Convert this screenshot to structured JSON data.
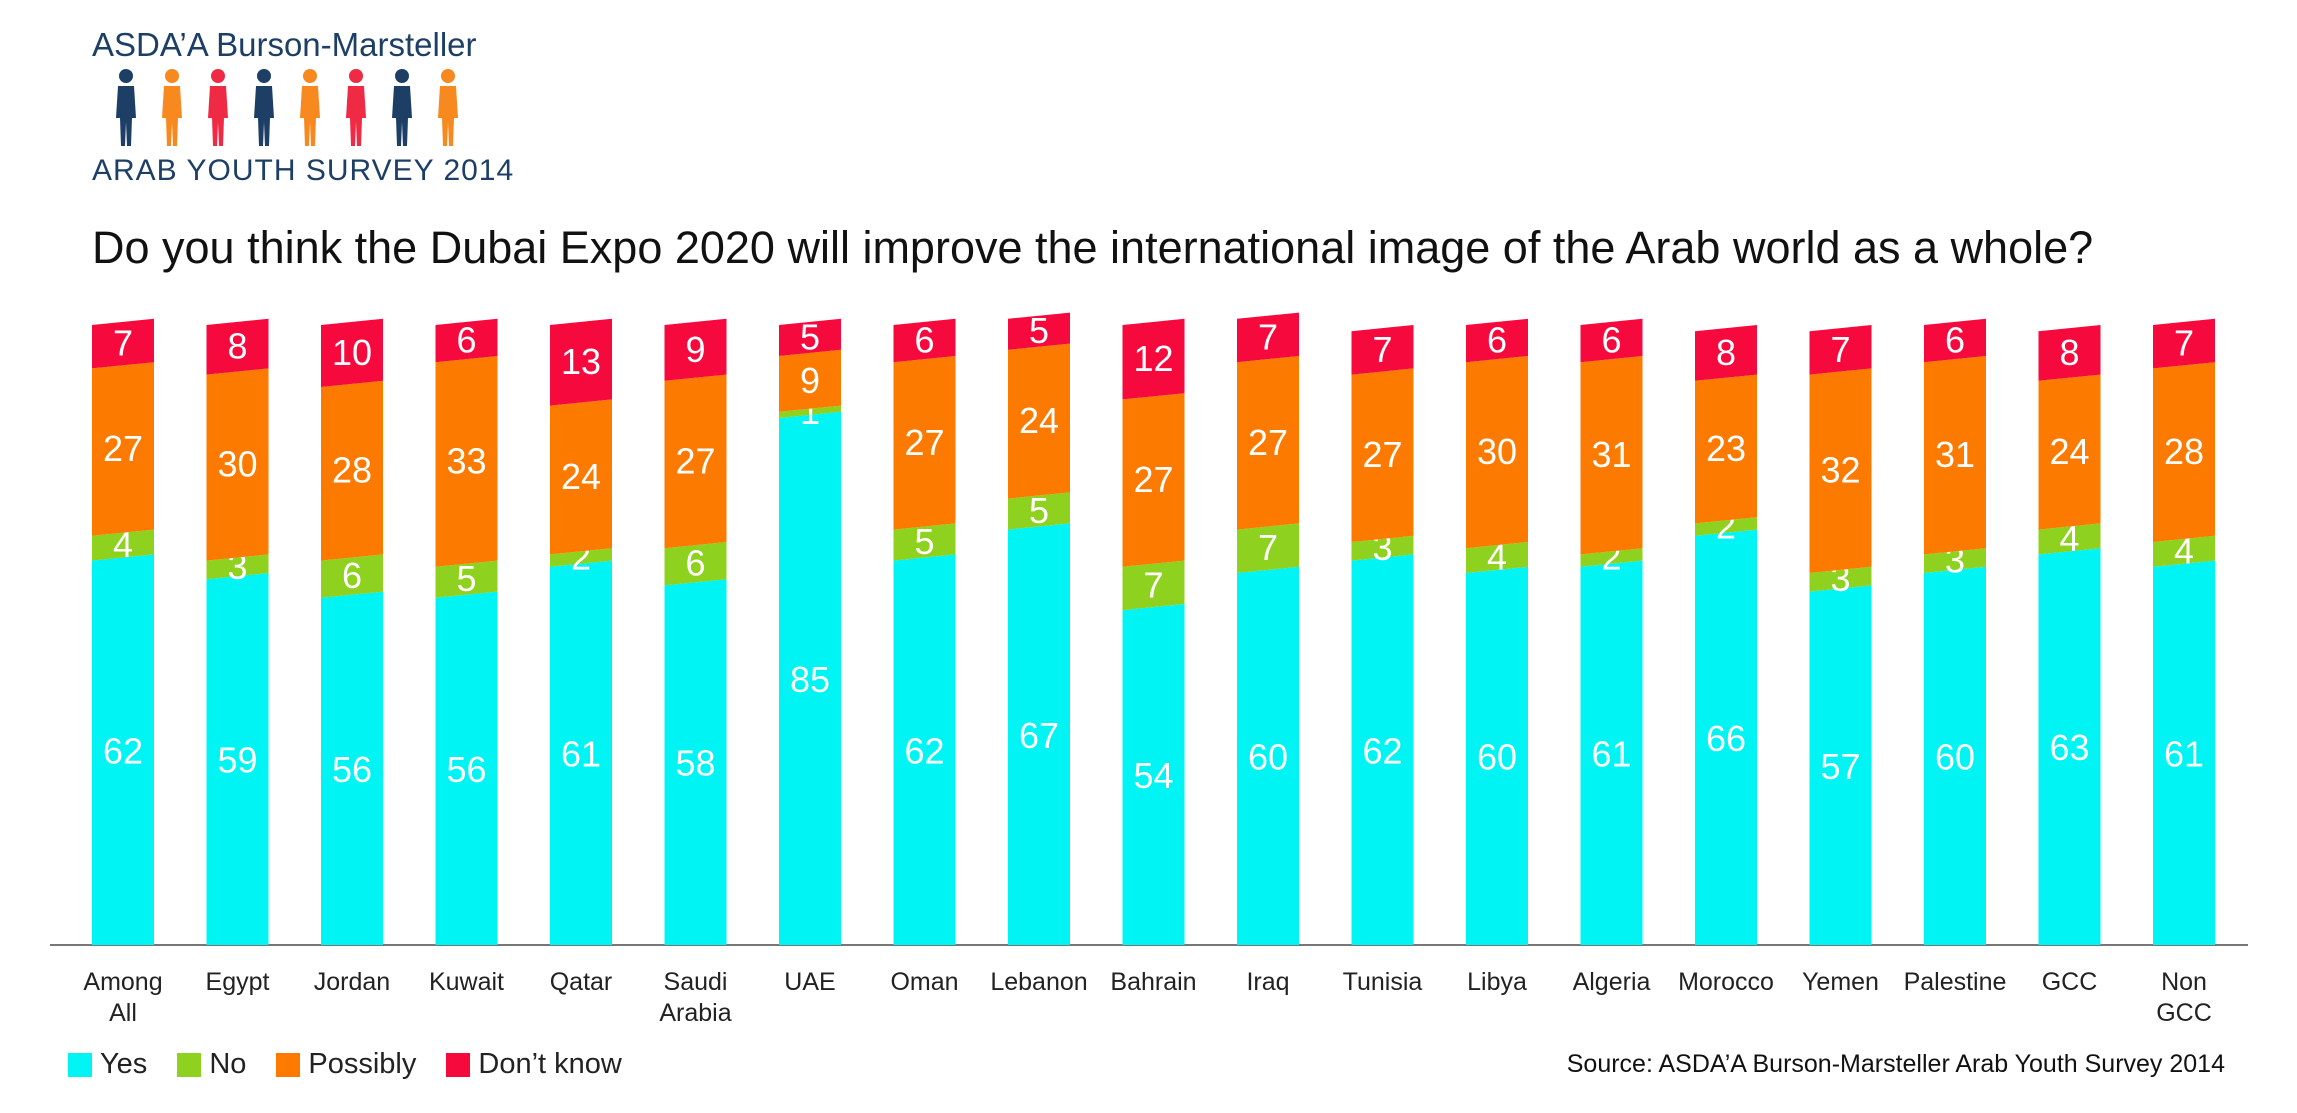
{
  "logo": {
    "title": "ASDA’A Burson-Marsteller",
    "subtitle": "ARAB YOUTH SURVEY 2014",
    "figure_colors": [
      "#1d3f66",
      "#f7891f",
      "#ee2a45",
      "#1d3f66",
      "#f7891f",
      "#ee2a45",
      "#1d3f66",
      "#f7891f"
    ]
  },
  "question": "Do you think the Dubai Expo 2020 will improve the international image of the Arab world as a whole?",
  "legend": [
    {
      "label": "Yes",
      "color": "#00f4f4"
    },
    {
      "label": "No",
      "color": "#8fd11f"
    },
    {
      "label": "Possibly",
      "color": "#fc7a00"
    },
    {
      "label": "Don’t know",
      "color": "#f60a3d"
    }
  ],
  "source": "Source: ASDA’A Burson-Marsteller Arab Youth Survey 2014",
  "chart_data": {
    "type": "bar",
    "stacked": true,
    "categories": [
      [
        "Among",
        "All"
      ],
      [
        "Egypt"
      ],
      [
        "Jordan"
      ],
      [
        "Kuwait"
      ],
      [
        "Qatar"
      ],
      [
        "Saudi",
        "Arabia"
      ],
      [
        "UAE"
      ],
      [
        "Oman"
      ],
      [
        "Lebanon"
      ],
      [
        "Bahrain"
      ],
      [
        "Iraq"
      ],
      [
        "Tunisia"
      ],
      [
        "Libya"
      ],
      [
        "Algeria"
      ],
      [
        "Morocco"
      ],
      [
        "Yemen"
      ],
      [
        "Palestine"
      ],
      [
        "GCC"
      ],
      [
        "Non",
        "GCC"
      ]
    ],
    "series": [
      {
        "name": "Yes",
        "color": "#00f4f4",
        "values": [
          62,
          59,
          56,
          56,
          61,
          58,
          85,
          62,
          67,
          54,
          60,
          62,
          60,
          61,
          66,
          57,
          60,
          63,
          61
        ]
      },
      {
        "name": "No",
        "color": "#8fd11f",
        "values": [
          4,
          3,
          6,
          5,
          2,
          6,
          1,
          5,
          5,
          7,
          7,
          3,
          4,
          2,
          2,
          3,
          3,
          4,
          4
        ]
      },
      {
        "name": "Possibly",
        "color": "#fc7a00",
        "values": [
          27,
          30,
          28,
          33,
          24,
          27,
          9,
          27,
          24,
          27,
          27,
          27,
          30,
          31,
          23,
          32,
          31,
          24,
          28
        ]
      },
      {
        "name": "Don’t know",
        "color": "#f60a3d",
        "values": [
          7,
          8,
          10,
          6,
          13,
          9,
          5,
          6,
          5,
          12,
          7,
          7,
          6,
          6,
          8,
          7,
          6,
          8,
          7
        ]
      }
    ],
    "ylim": [
      0,
      100
    ],
    "legend_position": "bottom-left",
    "grid": false
  }
}
